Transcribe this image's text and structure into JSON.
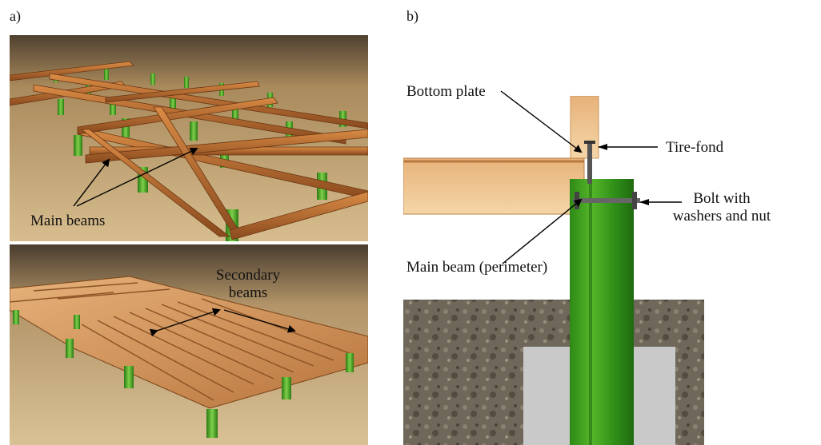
{
  "panels": {
    "a": {
      "label": "a)",
      "top_callout": "Main beams",
      "bottom_callout": [
        "Secondary",
        "beams"
      ]
    },
    "b": {
      "label": "b)",
      "callouts": {
        "bottom_plate": "Bottom plate",
        "tire_fond": "Tire-fond",
        "bolt": [
          "Bolt with",
          "washers and nut"
        ],
        "main_beam": "Main beam (perimeter)"
      }
    }
  },
  "colors": {
    "sand": "#c9a76e",
    "sky_dark": "#5a4a36",
    "wood": "#c9803e",
    "wood_light": "#e9b77a",
    "post_green": "#3d9a1e",
    "concrete": "#c9c9c9",
    "soil": "#6d6658"
  }
}
